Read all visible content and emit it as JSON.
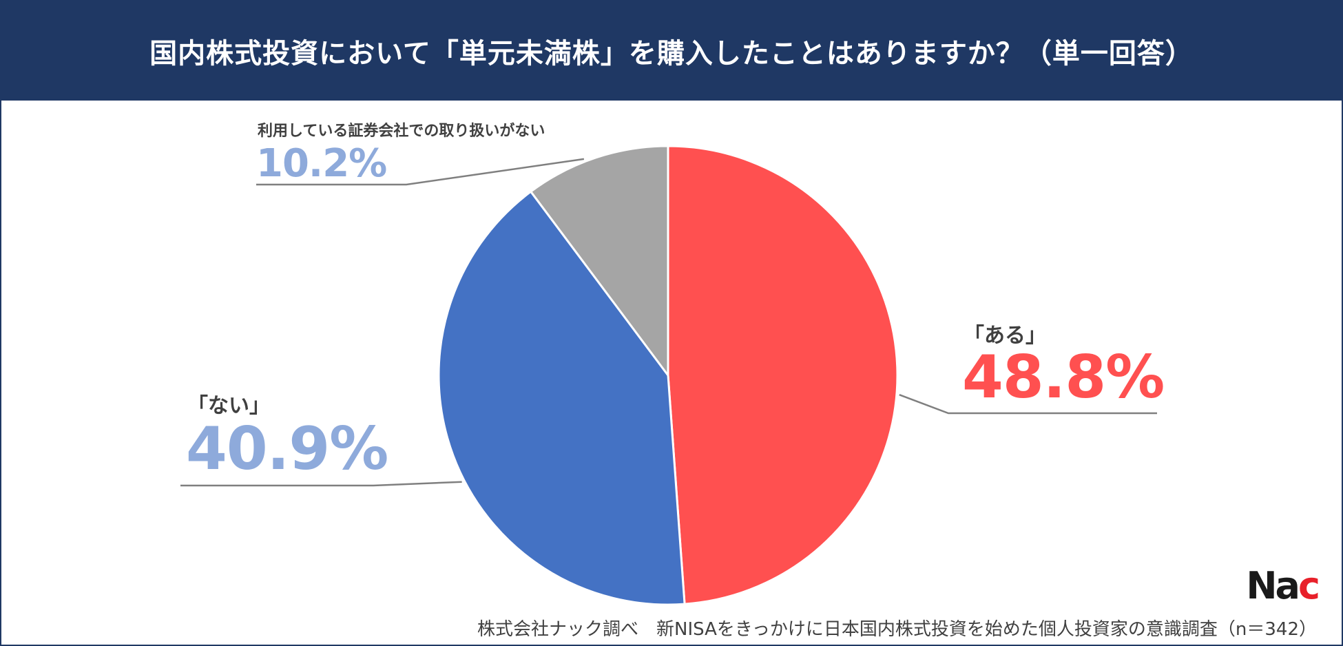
{
  "header": {
    "title": "国内株式投資において「単元未満株」を購入したことはありますか？（単一回答）"
  },
  "chart_data": {
    "type": "pie",
    "title": "国内株式投資において「単元未満株」を購入したことはありますか？（単一回答）",
    "slices": [
      {
        "label": "「ある」",
        "value": 48.8,
        "display": "48.8%",
        "color": "#ff5050"
      },
      {
        "label": "「ない」",
        "value": 40.9,
        "display": "40.9%",
        "color": "#4472c4"
      },
      {
        "label": "利用している証券会社での取り扱いがない",
        "value": 10.2,
        "display": "10.2%",
        "color": "#a5a5a5"
      }
    ],
    "label_colors": {
      "ある": "#ff5050",
      "ない": "#8eaadb",
      "other": "#8eaadb"
    }
  },
  "footer": {
    "source": "株式会社ナック調べ　新NISAをきっかけに日本国内株式投資を始めた個人投資家の意識調査（n＝342）"
  },
  "logo": {
    "text_a": "Na",
    "text_b": "c"
  }
}
